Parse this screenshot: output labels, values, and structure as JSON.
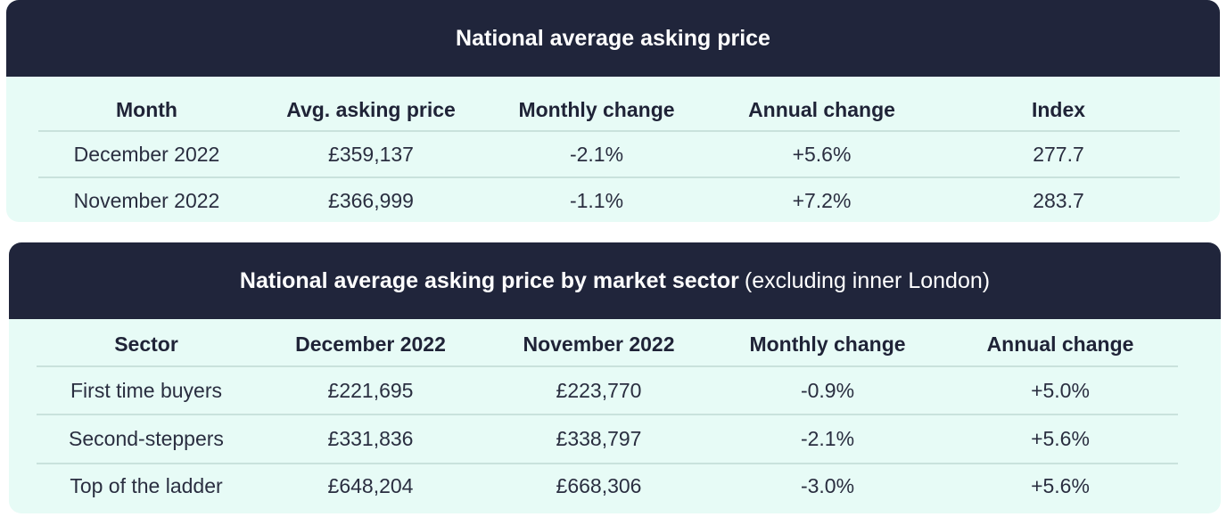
{
  "chart_data": [
    {
      "type": "table",
      "title": "National average asking price",
      "columns": [
        "Month",
        "Avg. asking price",
        "Monthly change",
        "Annual change",
        "Index"
      ],
      "rows": [
        [
          "December 2022",
          "£359,137",
          "-2.1%",
          "+5.6%",
          "277.7"
        ],
        [
          "November 2022",
          "£366,999",
          "-1.1%",
          "+7.2%",
          "283.7"
        ]
      ]
    },
    {
      "type": "table",
      "title": "National average asking price by market sector",
      "subtitle": "(excluding inner London)",
      "columns": [
        "Sector",
        "December 2022",
        "November 2022",
        "Monthly change",
        "Annual change"
      ],
      "rows": [
        [
          "First time buyers",
          "£221,695",
          "£223,770",
          "-0.9%",
          "+5.0%"
        ],
        [
          "Second-steppers",
          "£331,836",
          "£338,797",
          "-2.1%",
          "+5.6%"
        ],
        [
          "Top of the ladder",
          "£648,204",
          "£668,306",
          "-3.0%",
          "+5.6%"
        ]
      ]
    }
  ],
  "colors": {
    "header_background": "#20253b",
    "card_background": "#e7fbf6",
    "text": "#1f2337"
  }
}
